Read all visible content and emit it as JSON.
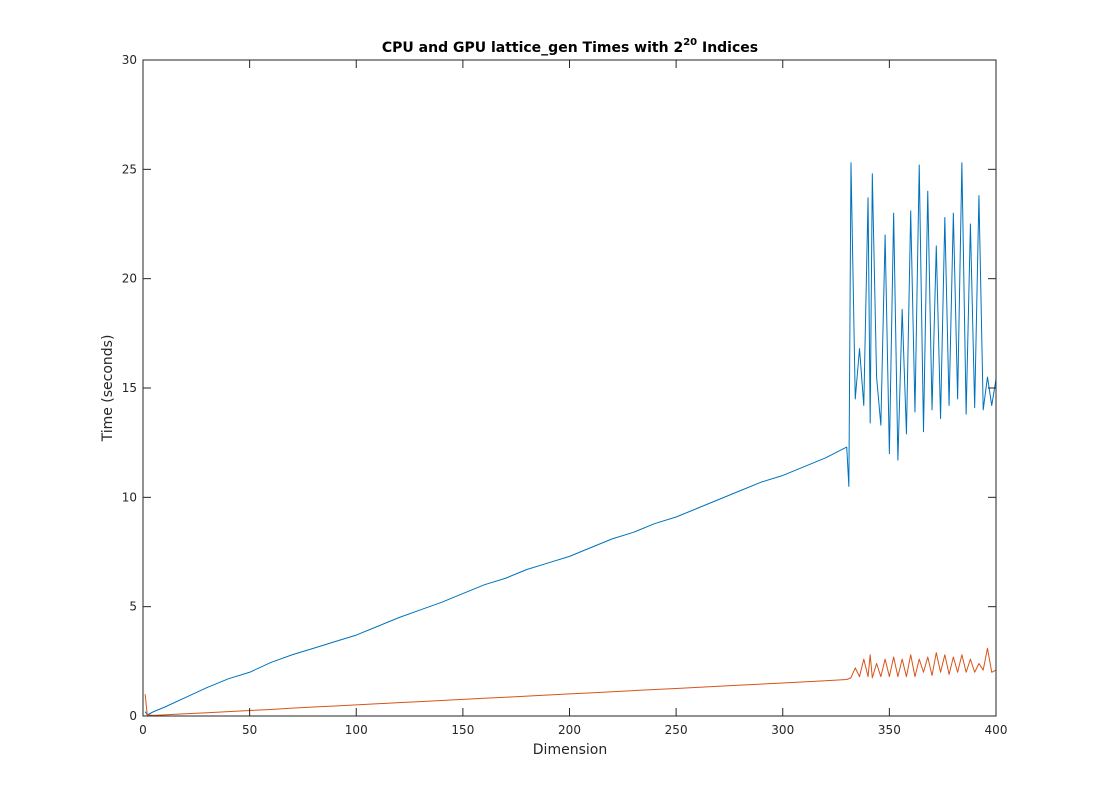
{
  "chart_data": {
    "type": "line",
    "title": {
      "prefix": "CPU and GPU lattice_gen Times with 2",
      "exponent": "20",
      "suffix": " Indices"
    },
    "xlabel": "Dimension",
    "ylabel": "Time (seconds)",
    "xlim": [
      0,
      400
    ],
    "ylim": [
      0,
      30
    ],
    "xticks": [
      0,
      50,
      100,
      150,
      200,
      250,
      300,
      350,
      400
    ],
    "yticks": [
      0,
      5,
      10,
      15,
      20,
      25,
      30
    ],
    "xtick_labels": [
      "0",
      "50",
      "100",
      "150",
      "200",
      "250",
      "300",
      "350",
      "400"
    ],
    "ytick_labels": [
      "0",
      "5",
      "10",
      "15",
      "20",
      "25",
      "30"
    ],
    "grid": false,
    "legend": "none",
    "series": [
      {
        "color": "#0072BD",
        "x": [
          1,
          2,
          5,
          10,
          20,
          30,
          40,
          50,
          60,
          70,
          80,
          90,
          100,
          110,
          120,
          130,
          140,
          150,
          160,
          170,
          180,
          190,
          200,
          210,
          220,
          230,
          240,
          250,
          260,
          270,
          280,
          290,
          300,
          310,
          320,
          330,
          331,
          332,
          334,
          336,
          338,
          340,
          341,
          342,
          344,
          346,
          348,
          350,
          352,
          354,
          356,
          358,
          360,
          362,
          364,
          366,
          368,
          370,
          372,
          374,
          376,
          378,
          380,
          382,
          384,
          386,
          388,
          390,
          392,
          394,
          396,
          398,
          400
        ],
        "values": [
          0.2,
          0.05,
          0.2,
          0.4,
          0.85,
          1.3,
          1.7,
          2.0,
          2.45,
          2.8,
          3.1,
          3.4,
          3.7,
          4.1,
          4.5,
          4.85,
          5.2,
          5.6,
          6.0,
          6.3,
          6.7,
          7.0,
          7.3,
          7.7,
          8.1,
          8.4,
          8.8,
          9.1,
          9.5,
          9.9,
          10.3,
          10.7,
          11.0,
          11.4,
          11.8,
          12.3,
          10.5,
          25.3,
          14.5,
          16.8,
          14.2,
          23.7,
          13.4,
          24.8,
          15.5,
          13.3,
          22.0,
          12.0,
          23.0,
          11.7,
          18.6,
          12.9,
          23.1,
          13.9,
          25.2,
          13.0,
          24.0,
          14.0,
          21.5,
          13.6,
          22.8,
          14.2,
          23.0,
          14.5,
          25.3,
          13.8,
          22.5,
          14.1,
          23.8,
          14.0,
          15.5,
          14.2,
          15.4
        ]
      },
      {
        "color": "#D95319",
        "x": [
          1,
          2,
          5,
          10,
          20,
          30,
          40,
          50,
          60,
          70,
          80,
          90,
          100,
          110,
          120,
          130,
          140,
          150,
          160,
          170,
          180,
          190,
          200,
          210,
          220,
          230,
          240,
          250,
          260,
          270,
          280,
          290,
          300,
          310,
          320,
          330,
          332,
          334,
          336,
          338,
          340,
          341,
          342,
          344,
          346,
          348,
          350,
          352,
          354,
          356,
          358,
          360,
          362,
          364,
          366,
          368,
          370,
          372,
          374,
          376,
          378,
          380,
          382,
          384,
          386,
          388,
          390,
          392,
          394,
          396,
          398,
          400
        ],
        "values": [
          1.0,
          0.05,
          0.03,
          0.05,
          0.1,
          0.15,
          0.2,
          0.25,
          0.3,
          0.36,
          0.41,
          0.46,
          0.51,
          0.56,
          0.61,
          0.66,
          0.71,
          0.76,
          0.81,
          0.86,
          0.91,
          0.96,
          1.01,
          1.06,
          1.11,
          1.16,
          1.21,
          1.26,
          1.31,
          1.36,
          1.41,
          1.46,
          1.51,
          1.56,
          1.61,
          1.67,
          1.75,
          2.2,
          1.8,
          2.6,
          1.8,
          2.8,
          1.75,
          2.4,
          1.8,
          2.6,
          1.8,
          2.7,
          1.8,
          2.6,
          1.8,
          2.8,
          1.8,
          2.6,
          2.0,
          2.7,
          1.85,
          2.9,
          2.0,
          2.8,
          1.9,
          2.7,
          2.0,
          2.8,
          2.0,
          2.6,
          2.0,
          2.4,
          2.1,
          3.1,
          2.0,
          2.1
        ]
      }
    ]
  }
}
